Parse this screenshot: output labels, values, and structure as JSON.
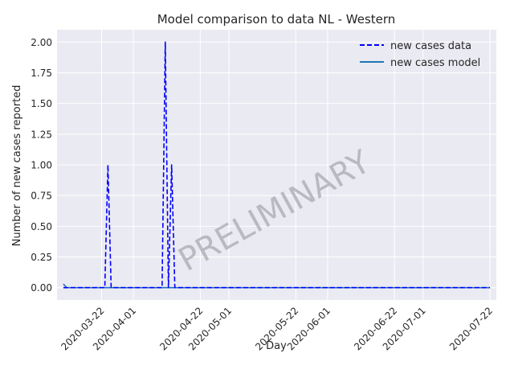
{
  "chart_data": {
    "type": "line",
    "title": "Model comparison to data NL - Western",
    "xlabel": "Day",
    "ylabel": "Number of new cases reported",
    "watermark": "PRELIMINARY",
    "x_range": [
      "2020-03-08",
      "2020-07-24"
    ],
    "y_range": [
      -0.1,
      2.1
    ],
    "grid": true,
    "legend_position": "top-right",
    "colors": {
      "background": "#eaeaf2",
      "grid": "#ffffff",
      "data_series": "#0000ff",
      "model_series": "#1f77b4",
      "watermark": "#a9a9b0"
    },
    "x_ticks": [
      "2020-03-22",
      "2020-04-01",
      "2020-04-22",
      "2020-05-01",
      "2020-05-22",
      "2020-06-01",
      "2020-06-22",
      "2020-07-01",
      "2020-07-22"
    ],
    "y_ticks": [
      "0.00",
      "0.25",
      "0.50",
      "0.75",
      "1.00",
      "1.25",
      "1.50",
      "1.75",
      "2.00"
    ],
    "series": [
      {
        "name": "new cases data",
        "style": "dashed",
        "points": [
          [
            "2020-03-10",
            0
          ],
          [
            "2020-03-23",
            0
          ],
          [
            "2020-03-24",
            1
          ],
          [
            "2020-03-25",
            0
          ],
          [
            "2020-04-10",
            0
          ],
          [
            "2020-04-11",
            2
          ],
          [
            "2020-04-12",
            0
          ],
          [
            "2020-04-13",
            1
          ],
          [
            "2020-04-14",
            0
          ],
          [
            "2020-07-22",
            0
          ]
        ]
      },
      {
        "name": "new cases model",
        "style": "solid",
        "points": [
          [
            "2020-03-10",
            0.03
          ],
          [
            "2020-03-11",
            0.0
          ],
          [
            "2020-07-22",
            0.0
          ]
        ]
      }
    ]
  }
}
